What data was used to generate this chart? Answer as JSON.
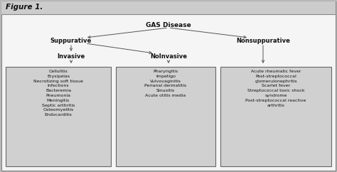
{
  "title": "Figure 1.",
  "title_bg": "#cccccc",
  "content_bg": "#ffffff",
  "outer_bg": "#bbbbbb",
  "box_fill": "#d0d0d0",
  "box_edge": "#666666",
  "text_color": "#111111",
  "arrow_color": "#555555",
  "gas_disease": "GAS Disease",
  "suppurative": "Suppurative",
  "nonsuppurative": "Nonsuppurative",
  "invasive": "Invasive",
  "noninvasive": "NoInvasive",
  "invasive_items": [
    "Cellulitis",
    "Erysipelas",
    "Necrotizing soft tissue\ninfections",
    "Bacteremia",
    "Pneumonia",
    "Meningitis",
    "Septic arthritis",
    "Osteomyelitis",
    "Endocarditis"
  ],
  "noninvasive_items": [
    "Pharyngitis",
    "Impetigo",
    "Vulvovaginitis",
    "Perianal dermatitis",
    "Sinusitis",
    "Acute otitis media"
  ],
  "nonsuppurative_items": [
    "Acute rheumatic fever",
    "Post-streptococcal\nglomerulonephritis",
    "Scarlet fever",
    "Streptococcal toxic shock\nsyndrome",
    "Post-streptococcal reactive\narthritis"
  ]
}
